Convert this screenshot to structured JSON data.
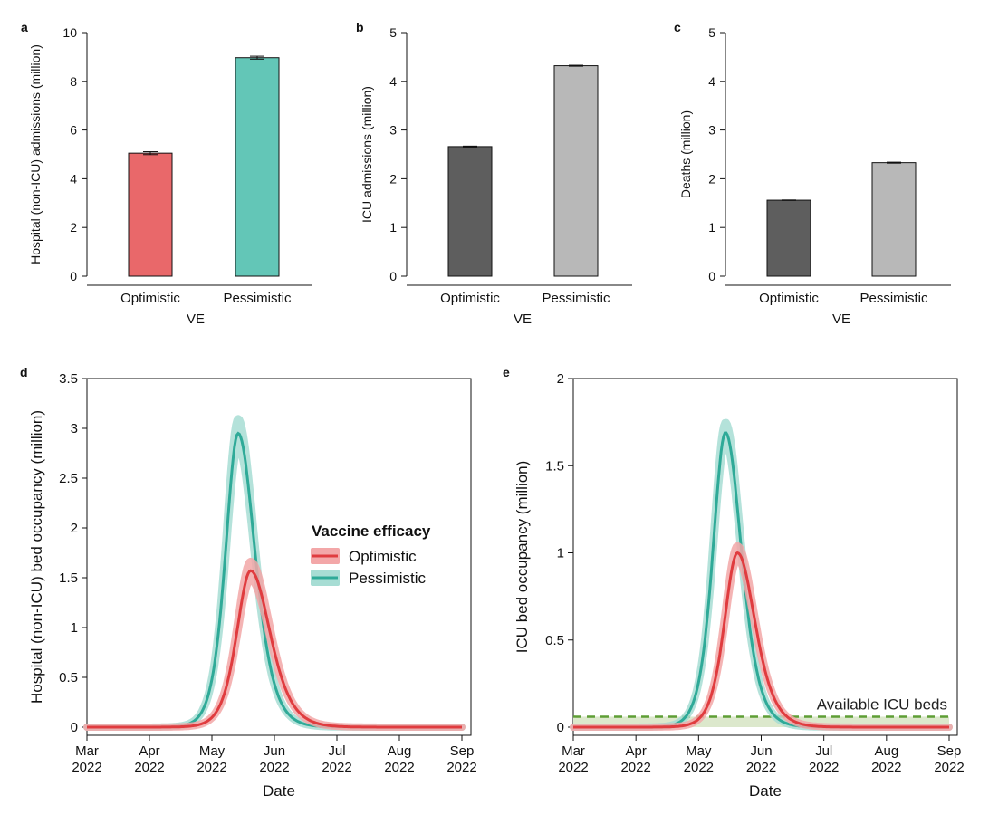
{
  "colors": {
    "optimistic": "#E9686A",
    "pessimistic": "#63C6B7",
    "optimistic_line": "#E03C3F",
    "optimistic_band": "#F3A7A8",
    "pessimistic_line": "#2FAA98",
    "pessimistic_band": "#A7DDD4",
    "grey_dark": "#5E5E5E",
    "grey_light": "#B8B8B8",
    "icu_line": "#5E9E35",
    "icu_band": "#DCE8CC"
  },
  "chart_data": [
    {
      "id": "a",
      "panel_label": "a",
      "type": "bar",
      "categories": [
        "Optimistic",
        "Pessimistic"
      ],
      "values": [
        5.05,
        8.97
      ],
      "errors": [
        0.06,
        0.06
      ],
      "xlabel": "VE",
      "ylabel": "Hospital (non-ICU) admissions (million)",
      "ylim": [
        0,
        10
      ],
      "yticks": [
        "0",
        "2",
        "4",
        "6",
        "8",
        "10"
      ]
    },
    {
      "id": "b",
      "panel_label": "b",
      "type": "bar",
      "categories": [
        "Optimistic",
        "Pessimistic"
      ],
      "values": [
        2.66,
        4.32
      ],
      "errors": [
        0.01,
        0.01
      ],
      "xlabel": "VE",
      "ylabel": "ICU admissions (million)",
      "ylim": [
        0,
        5
      ],
      "yticks": [
        "0",
        "1",
        "2",
        "3",
        "4",
        "5"
      ]
    },
    {
      "id": "c",
      "panel_label": "c",
      "type": "bar",
      "categories": [
        "Optimistic",
        "Pessimistic"
      ],
      "values": [
        1.56,
        2.33
      ],
      "errors": [
        0.005,
        0.01
      ],
      "xlabel": "VE",
      "ylabel": "Deaths (million)",
      "ylim": [
        0,
        5
      ],
      "yticks": [
        "0",
        "1",
        "2",
        "3",
        "4",
        "5"
      ]
    },
    {
      "id": "d",
      "panel_label": "d",
      "type": "line",
      "xlabel": "Date",
      "ylabel": "Hospital (non-ICU) bed occupancy (million)",
      "xlim_month": [
        0,
        6
      ],
      "xticks": [
        {
          "month": "Mar",
          "year": "2022"
        },
        {
          "month": "Apr",
          "year": "2022"
        },
        {
          "month": "May",
          "year": "2022"
        },
        {
          "month": "Jun",
          "year": "2022"
        },
        {
          "month": "Jul",
          "year": "2022"
        },
        {
          "month": "Aug",
          "year": "2022"
        },
        {
          "month": "Sep",
          "year": "2022"
        }
      ],
      "ylim": [
        0,
        3.5
      ],
      "yticks": [
        "0",
        "0.5",
        "1",
        "1.5",
        "2",
        "2.5",
        "3",
        "3.5"
      ],
      "series": [
        {
          "name": "Optimistic",
          "peak_month": 2.62,
          "peak": 1.57,
          "width_rise": 0.3,
          "width_fall": 0.42,
          "band": 0.06
        },
        {
          "name": "Pessimistic",
          "peak_month": 2.42,
          "peak": 2.95,
          "width_rise": 0.27,
          "width_fall": 0.36,
          "band": 0.05
        }
      ],
      "legend": {
        "title": "Vaccine efficacy",
        "items": [
          "Optimistic",
          "Pessimistic"
        ],
        "placement": "right"
      }
    },
    {
      "id": "e",
      "panel_label": "e",
      "type": "line",
      "xlabel": "Date",
      "ylabel": "ICU bed occupancy (million)",
      "xlim_month": [
        0,
        6
      ],
      "xticks": [
        {
          "month": "Mar",
          "year": "2022"
        },
        {
          "month": "Apr",
          "year": "2022"
        },
        {
          "month": "May",
          "year": "2022"
        },
        {
          "month": "Jun",
          "year": "2022"
        },
        {
          "month": "Jul",
          "year": "2022"
        },
        {
          "month": "Aug",
          "year": "2022"
        },
        {
          "month": "Sep",
          "year": "2022"
        }
      ],
      "ylim": [
        0,
        2
      ],
      "yticks": [
        "0",
        "0.5",
        "1",
        "1.5",
        "2"
      ],
      "series": [
        {
          "name": "Optimistic",
          "peak_month": 2.62,
          "peak": 1.0,
          "width_rise": 0.28,
          "width_fall": 0.38,
          "band": 0.04
        },
        {
          "name": "Pessimistic",
          "peak_month": 2.43,
          "peak": 1.69,
          "width_rise": 0.27,
          "width_fall": 0.34,
          "band": 0.035
        }
      ],
      "capacity": {
        "value": 0.06,
        "label": "Available ICU beds"
      }
    }
  ]
}
